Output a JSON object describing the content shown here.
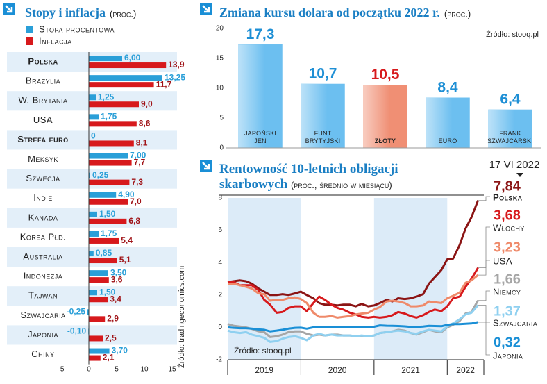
{
  "chart_data": [
    {
      "type": "barh",
      "title": "Stopy i inflacja",
      "subtitle": "(proc.)",
      "categories": [
        "Polska",
        "Brazylia",
        "W. Brytania",
        "USA",
        "Strefa euro",
        "Meksyk",
        "Szwecja",
        "Indie",
        "Kanada",
        "Korea Płd.",
        "Australia",
        "Indonezja",
        "Tajwan",
        "Szwajcaria",
        "Japonia",
        "Chiny"
      ],
      "highlight": [
        0,
        4
      ],
      "series": [
        {
          "name": "Stopa procentowa",
          "color": "#2a9fd8",
          "values": [
            6.0,
            13.25,
            1.25,
            1.75,
            0,
            7.0,
            0.25,
            4.9,
            1.5,
            1.75,
            0.85,
            3.5,
            1.5,
            -0.25,
            -0.1,
            3.7
          ],
          "value_labels": [
            "6,00",
            "13,25",
            "1,25",
            "1,75",
            "0",
            "7,00",
            "0,25",
            "4,90",
            "1,50",
            "1,75",
            "0,85",
            "3,50",
            "1,50",
            "-0,25",
            "-0,10",
            "3,70"
          ]
        },
        {
          "name": "Inflacja",
          "color": "#d7191c",
          "values": [
            13.9,
            11.7,
            9.0,
            8.6,
            8.1,
            7.7,
            7.3,
            7.0,
            6.8,
            5.4,
            5.1,
            3.6,
            3.4,
            2.9,
            2.5,
            2.1
          ],
          "value_labels": [
            "13,9",
            "11,7",
            "9,0",
            "8,6",
            "8,1",
            "7,7",
            "7,3",
            "7,0",
            "6,8",
            "5,4",
            "5,1",
            "3,6",
            "3,4",
            "2,9",
            "2,5",
            "2,1"
          ]
        }
      ],
      "xlim": [
        -5,
        15
      ],
      "xticks": [
        -5,
        0,
        5,
        10,
        15
      ],
      "source": "Źródło: tradingeconomics.com"
    },
    {
      "type": "bar",
      "title": "Zmiana kursu dolara od początku 2022 r.",
      "subtitle": "(proc.)",
      "categories": [
        "Japoński jen",
        "Funt brytyjski",
        "Złoty",
        "Euro",
        "Frank szwajcarski"
      ],
      "values": [
        17.3,
        10.7,
        10.5,
        8.4,
        6.4
      ],
      "value_labels": [
        "17,3",
        "10,7",
        "10,5",
        "8,4",
        "6,4"
      ],
      "colors": [
        "#6cbff0",
        "#6cbff0",
        "#f08f74",
        "#6cbff0",
        "#6cbff0"
      ],
      "label_colors": [
        "#1e8fd5",
        "#1e8fd5",
        "#d7191c",
        "#1e8fd5",
        "#1e8fd5"
      ],
      "highlight": [
        2
      ],
      "ylim": [
        0,
        20
      ],
      "yticks": [
        0,
        5,
        10,
        15,
        20
      ],
      "source": "Źródło: stooq.pl"
    },
    {
      "type": "line",
      "title": "Rentowność 10-letnich obligacji skarbowych",
      "subtitle": "(proc., średnio w miesiącu)",
      "date_label": "17 VI 2022",
      "x": [
        2019,
        2019.08,
        2019.17,
        2019.25,
        2019.33,
        2019.42,
        2019.5,
        2019.58,
        2019.67,
        2019.75,
        2019.83,
        2019.92,
        2020,
        2020.08,
        2020.17,
        2020.25,
        2020.33,
        2020.42,
        2020.5,
        2020.58,
        2020.67,
        2020.75,
        2020.83,
        2020.92,
        2021,
        2021.08,
        2021.17,
        2021.25,
        2021.33,
        2021.42,
        2021.5,
        2021.58,
        2021.67,
        2021.75,
        2021.83,
        2021.92,
        2022,
        2022.08,
        2022.17,
        2022.25,
        2022.33,
        2022.42
      ],
      "series": [
        {
          "name": "Polska",
          "color": "#8b1414",
          "value_label": "7,84",
          "values": [
            2.8,
            2.85,
            2.9,
            2.85,
            2.7,
            2.4,
            2.2,
            2.0,
            2.0,
            2.05,
            2.0,
            2.1,
            2.2,
            2.0,
            1.8,
            1.5,
            1.4,
            1.4,
            1.35,
            1.4,
            1.4,
            1.3,
            1.45,
            1.3,
            1.35,
            1.5,
            1.7,
            1.6,
            1.8,
            1.75,
            1.8,
            1.9,
            2.05,
            2.7,
            3.1,
            3.55,
            4.2,
            4.25,
            5.1,
            6.1,
            6.8,
            7.84
          ]
        },
        {
          "name": "Włochy",
          "color": "#d7191c",
          "value_label": "3,68",
          "values": [
            2.8,
            2.8,
            2.6,
            2.6,
            2.6,
            2.3,
            1.7,
            1.4,
            0.9,
            0.95,
            1.2,
            1.3,
            1.3,
            1.0,
            1.5,
            1.9,
            1.7,
            1.4,
            1.2,
            1.1,
            0.9,
            0.8,
            0.65,
            0.6,
            0.65,
            0.6,
            0.65,
            0.75,
            0.95,
            0.85,
            0.7,
            0.6,
            0.75,
            0.95,
            1.1,
            1.0,
            1.3,
            1.8,
            1.9,
            2.5,
            3.0,
            3.68
          ]
        },
        {
          "name": "USA",
          "color": "#ef8a6a",
          "value_label": "3,23",
          "values": [
            2.7,
            2.7,
            2.6,
            2.5,
            2.4,
            2.1,
            2.05,
            1.65,
            1.7,
            1.7,
            1.8,
            1.85,
            1.75,
            1.5,
            0.9,
            0.65,
            0.65,
            0.7,
            0.6,
            0.65,
            0.7,
            0.8,
            0.85,
            0.9,
            1.1,
            1.25,
            1.6,
            1.65,
            1.6,
            1.5,
            1.3,
            1.3,
            1.35,
            1.6,
            1.55,
            1.5,
            1.8,
            1.95,
            2.15,
            2.75,
            2.9,
            3.23
          ]
        },
        {
          "name": "Niemcy",
          "color": "#a6a6a6",
          "value_label": "1,66",
          "values": [
            0.2,
            0.1,
            0.05,
            0.0,
            -0.1,
            -0.25,
            -0.3,
            -0.6,
            -0.55,
            -0.45,
            -0.3,
            -0.25,
            -0.25,
            -0.4,
            -0.5,
            -0.45,
            -0.5,
            -0.45,
            -0.45,
            -0.5,
            -0.5,
            -0.55,
            -0.55,
            -0.55,
            -0.5,
            -0.35,
            -0.3,
            -0.25,
            -0.15,
            -0.2,
            -0.35,
            -0.45,
            -0.3,
            -0.15,
            -0.25,
            -0.3,
            0.0,
            0.15,
            0.4,
            0.85,
            0.95,
            1.66
          ]
        },
        {
          "name": "Szwajcaria",
          "color": "#8fd0f0",
          "value_label": "1,37",
          "values": [
            -0.2,
            -0.3,
            -0.35,
            -0.3,
            -0.45,
            -0.55,
            -0.65,
            -0.9,
            -0.85,
            -0.7,
            -0.6,
            -0.55,
            -0.65,
            -0.8,
            -0.5,
            -0.4,
            -0.5,
            -0.45,
            -0.5,
            -0.5,
            -0.5,
            -0.55,
            -0.5,
            -0.55,
            -0.5,
            -0.35,
            -0.3,
            -0.25,
            -0.2,
            -0.25,
            -0.35,
            -0.4,
            -0.25,
            -0.15,
            -0.2,
            -0.25,
            0.05,
            0.25,
            0.5,
            0.8,
            0.9,
            1.37
          ]
        },
        {
          "name": "Japonia",
          "color": "#1a8fd6",
          "value_label": "0,32",
          "values": [
            0.0,
            -0.03,
            -0.05,
            -0.05,
            -0.08,
            -0.13,
            -0.15,
            -0.25,
            -0.2,
            -0.15,
            -0.08,
            -0.03,
            -0.02,
            -0.08,
            0.0,
            0.0,
            0.0,
            0.02,
            0.03,
            0.03,
            0.02,
            0.03,
            0.02,
            0.02,
            0.04,
            0.12,
            0.1,
            0.09,
            0.08,
            0.06,
            0.03,
            0.02,
            0.05,
            0.09,
            0.08,
            0.07,
            0.15,
            0.2,
            0.2,
            0.22,
            0.24,
            0.32
          ]
        }
      ],
      "xlim": [
        2019,
        2022.5
      ],
      "xticks": [
        {
          "value": 2019,
          "label": "2019"
        },
        {
          "value": 2020,
          "label": "2020"
        },
        {
          "value": 2021,
          "label": "2021"
        },
        {
          "value": 2022,
          "label": "2022"
        }
      ],
      "ylim": [
        -2,
        8
      ],
      "yticks": [
        -2,
        0,
        2,
        4,
        6,
        8
      ],
      "source": "Źródło: stooq.pl"
    }
  ]
}
